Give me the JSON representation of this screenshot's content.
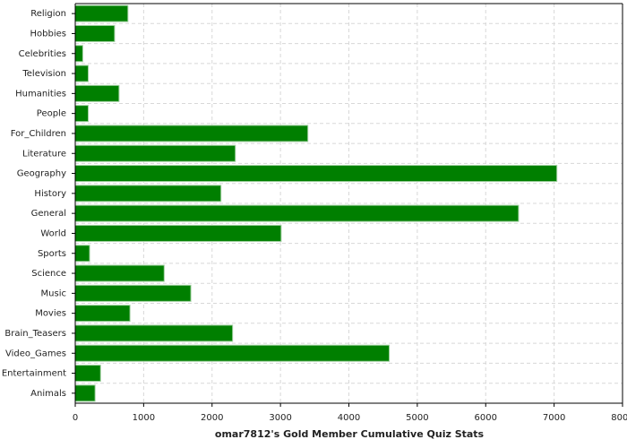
{
  "chart_data": {
    "type": "hbar",
    "xlabel": "omar7812's Gold Member Cumulative Quiz Stats",
    "categories": [
      "Religion",
      "Hobbies",
      "Celebrities",
      "Television",
      "Humanities",
      "People",
      "For_Children",
      "Literature",
      "Geography",
      "History",
      "General",
      "World",
      "Sports",
      "Science",
      "Music",
      "Movies",
      "Brain_Teasers",
      "Video_Games",
      "Entertainment",
      "Animals"
    ],
    "values": [
      770,
      575,
      110,
      190,
      640,
      190,
      3400,
      2340,
      7040,
      2130,
      6480,
      3010,
      210,
      1300,
      1690,
      800,
      2300,
      4590,
      370,
      290
    ],
    "color": "#007f00",
    "xlim": [
      0,
      8000
    ],
    "xticks": [
      0,
      1000,
      2000,
      3000,
      4000,
      5000,
      6000,
      7000,
      8000
    ],
    "grid": true
  }
}
